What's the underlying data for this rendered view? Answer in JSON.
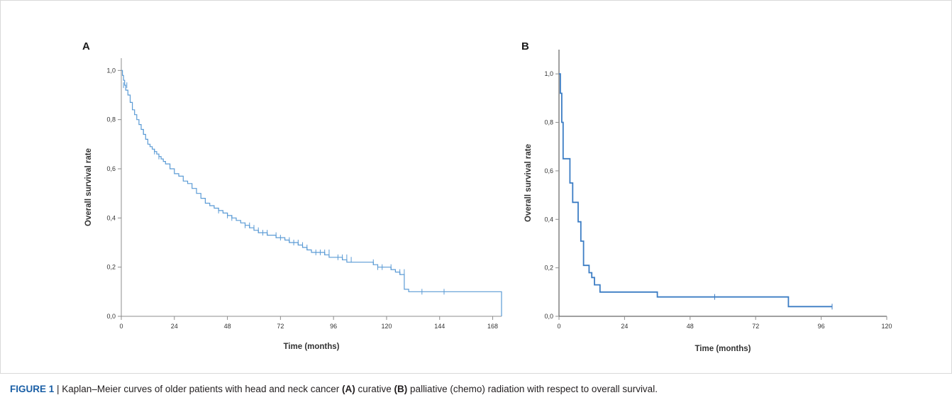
{
  "caption": {
    "figure_label": "FIGURE 1",
    "separator": " | ",
    "text_1": "Kaplan–Meier curves of older patients with head and neck cancer ",
    "panel_a": "(A)",
    "text_2": " curative ",
    "panel_b": "(B)",
    "text_3": " palliative (chemo) radiation with respect to overall survival."
  },
  "chart_data": [
    {
      "type": "line",
      "panel_label": "A",
      "xlabel": "Time (months)",
      "ylabel": "Overall survival rate",
      "xlim": [
        0,
        172
      ],
      "ylim": [
        0,
        1.05
      ],
      "xticks": [
        0,
        24,
        48,
        72,
        96,
        120,
        144,
        168
      ],
      "xtick_labels": [
        "0",
        "24",
        "48",
        "72",
        "96",
        "120",
        "144",
        "168"
      ],
      "yticks": [
        0,
        0.2,
        0.4,
        0.6,
        0.8,
        1.0
      ],
      "ytick_labels": [
        "0,0",
        "0,2",
        "0,4",
        "0,6",
        "0,8",
        "1,0"
      ],
      "grid": false,
      "line_color": "#5b9bd5",
      "series": [
        {
          "x": [
            0,
            0.5,
            1,
            1.5,
            2,
            3,
            4,
            5,
            6,
            7,
            8,
            9,
            10,
            11,
            12,
            13,
            14,
            15,
            16,
            17,
            18,
            19,
            20,
            22,
            24,
            26,
            28,
            30,
            32,
            34,
            36,
            38,
            40,
            42,
            44,
            46,
            48,
            50,
            52,
            54,
            56,
            58,
            60,
            62,
            64,
            66,
            68,
            70,
            72,
            74,
            76,
            78,
            80,
            82,
            84,
            86,
            88,
            90,
            92,
            94,
            96,
            98,
            100,
            102,
            104,
            106,
            108,
            110,
            112,
            114,
            116,
            118,
            120,
            122,
            124,
            126,
            128,
            130,
            132,
            134,
            136,
            138,
            140,
            142,
            144,
            146,
            148,
            150,
            152,
            154,
            156,
            158,
            160,
            162,
            164,
            166,
            168,
            170,
            172
          ],
          "y": [
            1.0,
            0.98,
            0.96,
            0.94,
            0.92,
            0.9,
            0.87,
            0.84,
            0.82,
            0.8,
            0.78,
            0.76,
            0.74,
            0.72,
            0.7,
            0.69,
            0.68,
            0.67,
            0.66,
            0.65,
            0.64,
            0.63,
            0.62,
            0.6,
            0.58,
            0.57,
            0.55,
            0.54,
            0.52,
            0.5,
            0.48,
            0.46,
            0.45,
            0.44,
            0.43,
            0.42,
            0.41,
            0.4,
            0.39,
            0.38,
            0.37,
            0.36,
            0.35,
            0.34,
            0.34,
            0.33,
            0.33,
            0.32,
            0.32,
            0.31,
            0.3,
            0.3,
            0.29,
            0.28,
            0.27,
            0.26,
            0.26,
            0.26,
            0.25,
            0.24,
            0.24,
            0.24,
            0.23,
            0.22,
            0.22,
            0.22,
            0.22,
            0.22,
            0.22,
            0.21,
            0.2,
            0.2,
            0.2,
            0.19,
            0.18,
            0.17,
            0.11,
            0.1,
            0.1,
            0.1,
            0.1,
            0.1,
            0.1,
            0.1,
            0.1,
            0.1,
            0.1,
            0.1,
            0.1,
            0.1,
            0.1,
            0.1,
            0.1,
            0.1,
            0.1,
            0.1,
            0.1,
            0.1,
            0.0
          ]
        }
      ],
      "censored": [
        {
          "x": 1,
          "y": 0.94
        },
        {
          "x": 2.5,
          "y": 0.94
        },
        {
          "x": 10,
          "y": 0.75
        },
        {
          "x": 15,
          "y": 0.67
        },
        {
          "x": 17,
          "y": 0.65
        },
        {
          "x": 44,
          "y": 0.43
        },
        {
          "x": 48,
          "y": 0.41
        },
        {
          "x": 50,
          "y": 0.4
        },
        {
          "x": 56,
          "y": 0.37
        },
        {
          "x": 58,
          "y": 0.37
        },
        {
          "x": 60,
          "y": 0.36
        },
        {
          "x": 62,
          "y": 0.35
        },
        {
          "x": 64,
          "y": 0.34
        },
        {
          "x": 66,
          "y": 0.34
        },
        {
          "x": 70,
          "y": 0.33
        },
        {
          "x": 72,
          "y": 0.32
        },
        {
          "x": 76,
          "y": 0.31
        },
        {
          "x": 78,
          "y": 0.3
        },
        {
          "x": 80,
          "y": 0.3
        },
        {
          "x": 82,
          "y": 0.29
        },
        {
          "x": 84,
          "y": 0.28
        },
        {
          "x": 88,
          "y": 0.26
        },
        {
          "x": 90,
          "y": 0.26
        },
        {
          "x": 92,
          "y": 0.26
        },
        {
          "x": 94,
          "y": 0.26
        },
        {
          "x": 98,
          "y": 0.24
        },
        {
          "x": 100,
          "y": 0.24
        },
        {
          "x": 102,
          "y": 0.24
        },
        {
          "x": 104,
          "y": 0.23
        },
        {
          "x": 114,
          "y": 0.22
        },
        {
          "x": 116,
          "y": 0.2
        },
        {
          "x": 118,
          "y": 0.2
        },
        {
          "x": 122,
          "y": 0.2
        },
        {
          "x": 126,
          "y": 0.18
        },
        {
          "x": 128,
          "y": 0.18
        },
        {
          "x": 136,
          "y": 0.1
        },
        {
          "x": 146,
          "y": 0.1
        }
      ]
    },
    {
      "type": "line",
      "panel_label": "B",
      "xlabel": "Time (months)",
      "ylabel": "Overall survival rate",
      "xlim": [
        0,
        120
      ],
      "ylim": [
        0,
        1.1
      ],
      "xticks": [
        0,
        24,
        48,
        72,
        96,
        120
      ],
      "xtick_labels": [
        "0",
        "24",
        "48",
        "72",
        "96",
        "120"
      ],
      "yticks": [
        0,
        0.2,
        0.4,
        0.6,
        0.8,
        1.0
      ],
      "ytick_labels": [
        "0,0",
        "0,2",
        "0,4",
        "0,6",
        "0,8",
        "1,0"
      ],
      "grid": false,
      "line_color": "#3c7dc4",
      "series": [
        {
          "x": [
            0,
            0.5,
            1,
            1.5,
            3,
            4,
            5,
            6,
            7,
            8,
            9,
            10,
            11,
            12,
            13,
            14,
            15,
            16,
            17,
            18,
            36,
            37,
            83,
            84,
            100
          ],
          "y": [
            1.0,
            0.92,
            0.8,
            0.65,
            0.65,
            0.55,
            0.47,
            0.47,
            0.39,
            0.31,
            0.21,
            0.21,
            0.18,
            0.16,
            0.13,
            0.13,
            0.1,
            0.1,
            0.1,
            0.1,
            0.08,
            0.08,
            0.08,
            0.04,
            0.04
          ]
        }
      ],
      "censored": [
        {
          "x": 57,
          "y": 0.08
        },
        {
          "x": 100,
          "y": 0.04
        }
      ]
    }
  ]
}
